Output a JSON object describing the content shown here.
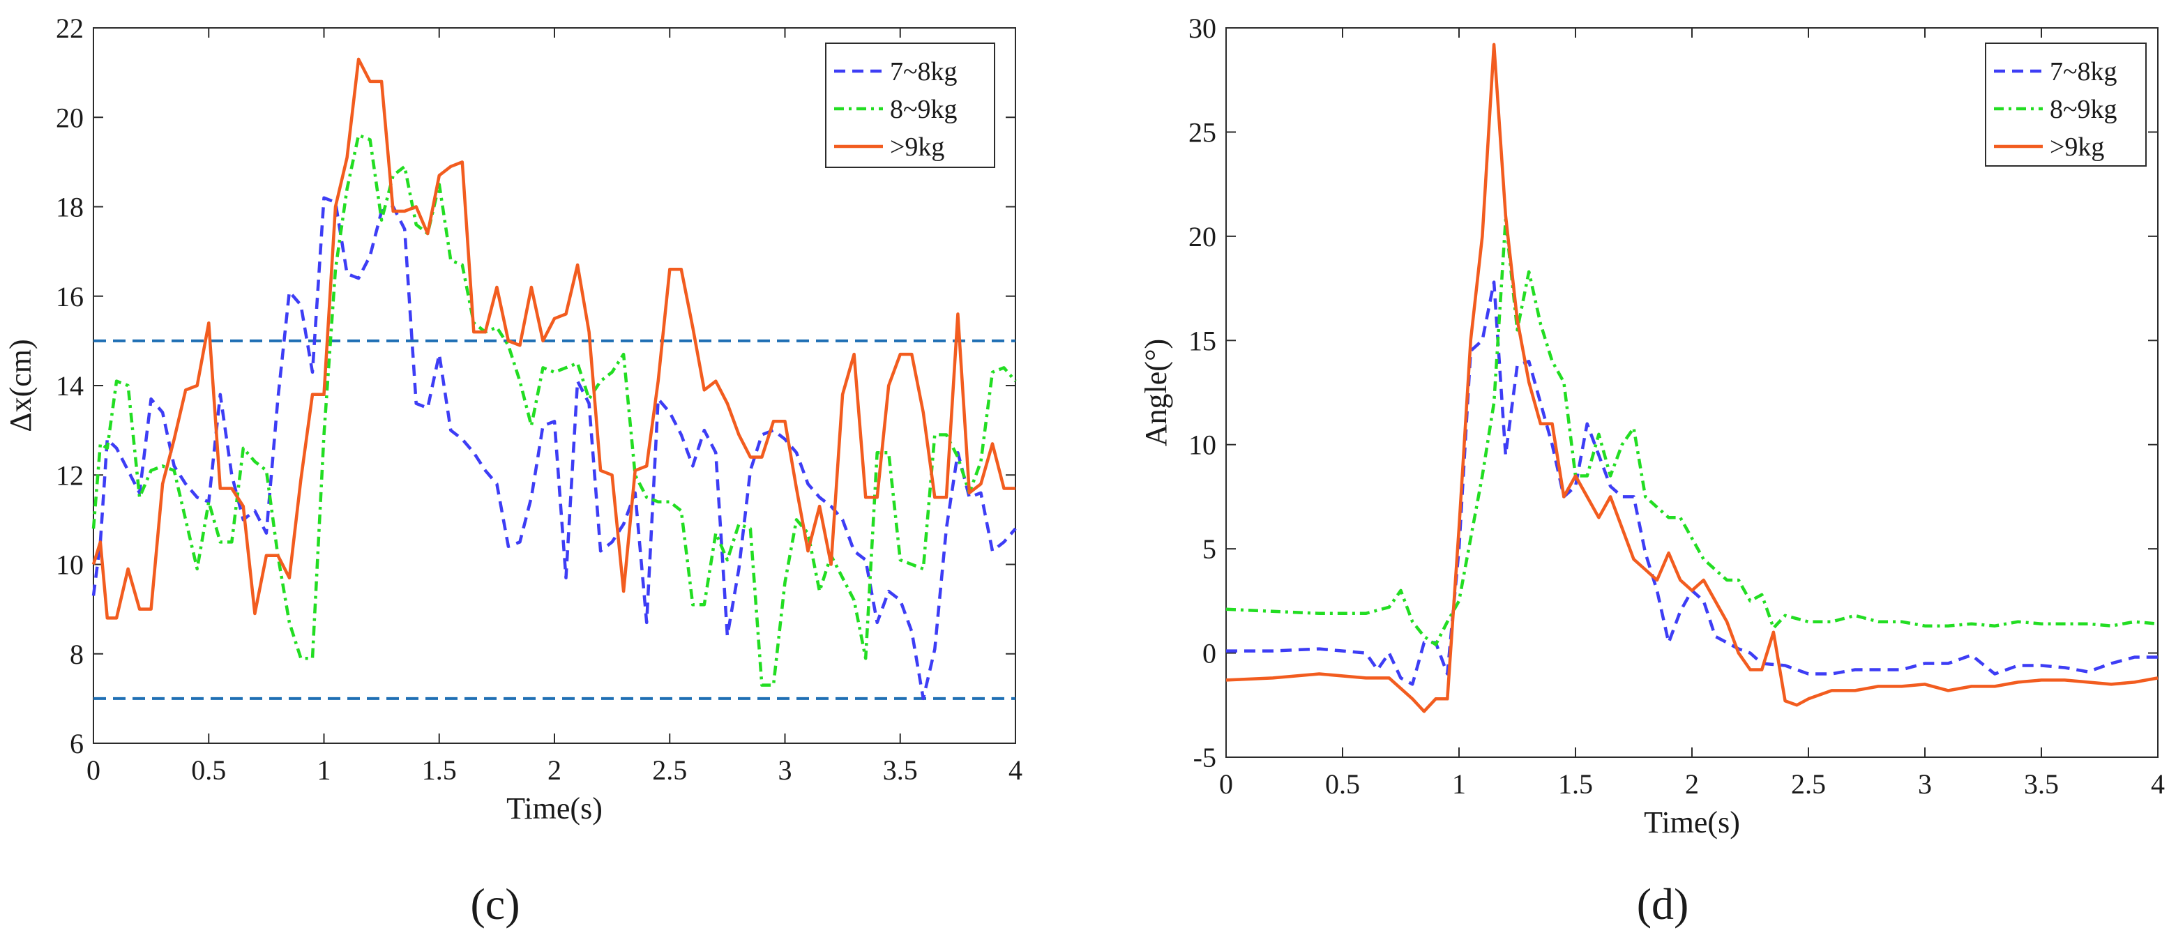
{
  "chart_data": [
    {
      "type": "line",
      "panel_label": "(c)",
      "xlabel": "Time(s)",
      "ylabel": "Δx(cm)",
      "xlim": [
        0,
        4
      ],
      "ylim": [
        6,
        22
      ],
      "xticks": [
        0,
        0.5,
        1,
        1.5,
        2,
        2.5,
        3,
        3.5,
        4
      ],
      "xtick_labels": [
        "0",
        "0.5",
        "1",
        "1.5",
        "2",
        "2.5",
        "3",
        "3.5",
        "4"
      ],
      "yticks": [
        6,
        8,
        10,
        12,
        14,
        16,
        18,
        20,
        22
      ],
      "ytick_labels": [
        "6",
        "8",
        "10",
        "12",
        "14",
        "16",
        "18",
        "20",
        "22"
      ],
      "legend": "top-right",
      "threshold_lines": [
        15,
        7
      ],
      "threshold_color": "#1f6fb4",
      "series": [
        {
          "name": "7~8kg",
          "color": "#3d3df5",
          "dash": "dashed",
          "x": [
            0,
            0.03,
            0.06,
            0.1,
            0.15,
            0.2,
            0.25,
            0.3,
            0.35,
            0.4,
            0.45,
            0.5,
            0.55,
            0.6,
            0.65,
            0.7,
            0.75,
            0.8,
            0.85,
            0.9,
            0.95,
            1,
            1.05,
            1.1,
            1.15,
            1.2,
            1.25,
            1.3,
            1.35,
            1.4,
            1.45,
            1.5,
            1.55,
            1.6,
            1.65,
            1.7,
            1.75,
            1.8,
            1.85,
            1.9,
            1.95,
            2,
            2.05,
            2.1,
            2.15,
            2.2,
            2.25,
            2.3,
            2.35,
            2.4,
            2.45,
            2.5,
            2.55,
            2.6,
            2.65,
            2.7,
            2.75,
            2.8,
            2.85,
            2.9,
            2.95,
            3,
            3.05,
            3.1,
            3.15,
            3.2,
            3.25,
            3.3,
            3.35,
            3.4,
            3.45,
            3.5,
            3.55,
            3.6,
            3.65,
            3.7,
            3.75,
            3.8,
            3.85,
            3.9,
            3.95,
            4
          ],
          "y": [
            9.3,
            10.5,
            12.8,
            12.6,
            12.1,
            11.6,
            13.7,
            13.4,
            12.2,
            11.8,
            11.5,
            11.4,
            13.8,
            12.0,
            11.0,
            11.2,
            10.7,
            13.7,
            16.1,
            15.8,
            14.3,
            18.2,
            18.1,
            16.5,
            16.4,
            16.9,
            17.9,
            18.0,
            17.5,
            13.6,
            13.5,
            14.7,
            13.0,
            12.8,
            12.5,
            12.1,
            11.8,
            10.4,
            10.5,
            11.5,
            13.1,
            13.2,
            9.7,
            14.1,
            13.6,
            10.3,
            10.5,
            10.9,
            11.6,
            8.7,
            13.7,
            13.4,
            12.9,
            12.2,
            13.0,
            12.5,
            8.4,
            9.9,
            12.1,
            12.9,
            13.0,
            12.8,
            12.5,
            11.8,
            11.5,
            11.3,
            11.0,
            10.3,
            10.1,
            8.7,
            9.4,
            9.2,
            8.5,
            7.0,
            8.1,
            10.8,
            12.5,
            11.5,
            11.6,
            10.3,
            10.5,
            10.8
          ]
        },
        {
          "name": "8~9kg",
          "color": "#22dd22",
          "dash": "dashdot",
          "x": [
            0,
            0.03,
            0.06,
            0.1,
            0.15,
            0.2,
            0.25,
            0.3,
            0.35,
            0.4,
            0.45,
            0.5,
            0.55,
            0.6,
            0.65,
            0.7,
            0.75,
            0.8,
            0.85,
            0.9,
            0.95,
            1,
            1.05,
            1.1,
            1.15,
            1.2,
            1.25,
            1.3,
            1.35,
            1.4,
            1.45,
            1.5,
            1.55,
            1.6,
            1.65,
            1.7,
            1.75,
            1.8,
            1.85,
            1.9,
            1.95,
            2,
            2.05,
            2.1,
            2.15,
            2.2,
            2.25,
            2.3,
            2.35,
            2.4,
            2.45,
            2.5,
            2.55,
            2.6,
            2.65,
            2.7,
            2.75,
            2.8,
            2.85,
            2.9,
            2.95,
            3,
            3.05,
            3.1,
            3.15,
            3.2,
            3.25,
            3.3,
            3.35,
            3.4,
            3.45,
            3.5,
            3.55,
            3.6,
            3.65,
            3.7,
            3.75,
            3.8,
            3.85,
            3.9,
            3.95,
            4
          ],
          "y": [
            10.8,
            12.7,
            12.6,
            14.1,
            14.0,
            11.5,
            12.1,
            12.2,
            12.1,
            11.0,
            9.9,
            11.4,
            10.5,
            10.5,
            12.6,
            12.3,
            12.1,
            10.2,
            8.7,
            7.9,
            7.9,
            12.9,
            16.6,
            18.4,
            19.6,
            19.5,
            17.7,
            18.7,
            18.9,
            17.6,
            17.4,
            18.5,
            16.8,
            16.7,
            15.4,
            15.2,
            15.3,
            14.9,
            14.1,
            13.1,
            14.4,
            14.3,
            14.4,
            14.5,
            13.7,
            14.1,
            14.3,
            14.7,
            12.0,
            11.5,
            11.4,
            11.4,
            11.2,
            9.1,
            9.1,
            10.7,
            10.1,
            10.9,
            10.8,
            7.3,
            7.3,
            9.6,
            11.0,
            10.7,
            9.4,
            10.2,
            9.7,
            9.2,
            7.9,
            12.5,
            12.5,
            10.1,
            10.0,
            9.9,
            12.9,
            12.9,
            12.4,
            11.6,
            12.3,
            14.3,
            14.4,
            14.1
          ]
        },
        {
          "name": ">9kg",
          "color": "#f25c1f",
          "dash": "solid",
          "x": [
            0,
            0.03,
            0.06,
            0.1,
            0.15,
            0.2,
            0.25,
            0.3,
            0.35,
            0.4,
            0.45,
            0.5,
            0.55,
            0.6,
            0.65,
            0.7,
            0.75,
            0.8,
            0.85,
            0.9,
            0.95,
            1,
            1.05,
            1.1,
            1.15,
            1.2,
            1.25,
            1.3,
            1.35,
            1.4,
            1.45,
            1.5,
            1.55,
            1.6,
            1.65,
            1.7,
            1.75,
            1.8,
            1.85,
            1.9,
            1.95,
            2,
            2.05,
            2.1,
            2.15,
            2.2,
            2.25,
            2.3,
            2.35,
            2.4,
            2.45,
            2.5,
            2.55,
            2.6,
            2.65,
            2.7,
            2.75,
            2.8,
            2.85,
            2.9,
            2.95,
            3,
            3.05,
            3.1,
            3.15,
            3.2,
            3.25,
            3.3,
            3.35,
            3.4,
            3.45,
            3.5,
            3.55,
            3.6,
            3.65,
            3.7,
            3.75,
            3.8,
            3.85,
            3.9,
            3.95,
            4
          ],
          "y": [
            10.0,
            10.5,
            8.8,
            8.8,
            9.9,
            9.0,
            9.0,
            11.8,
            12.8,
            13.9,
            14.0,
            15.4,
            11.7,
            11.7,
            11.3,
            8.9,
            10.2,
            10.2,
            9.7,
            11.9,
            13.8,
            13.8,
            18.0,
            19.1,
            21.3,
            20.8,
            20.8,
            17.9,
            17.9,
            18.0,
            17.4,
            18.7,
            18.9,
            19.0,
            15.2,
            15.2,
            16.2,
            15.0,
            14.9,
            16.2,
            15.0,
            15.5,
            15.6,
            16.7,
            15.2,
            12.1,
            12.0,
            9.4,
            12.1,
            12.2,
            14.1,
            16.6,
            16.6,
            15.3,
            13.9,
            14.1,
            13.6,
            12.9,
            12.4,
            12.4,
            13.2,
            13.2,
            11.7,
            10.3,
            11.3,
            10.0,
            13.8,
            14.7,
            11.5,
            11.5,
            14.0,
            14.7,
            14.7,
            13.4,
            11.5,
            11.5,
            15.6,
            11.6,
            11.8,
            12.7,
            11.7,
            11.7
          ]
        }
      ]
    },
    {
      "type": "line",
      "panel_label": "(d)",
      "xlabel": "Time(s)",
      "ylabel": "Angle(°)",
      "xlim": [
        0,
        4
      ],
      "ylim": [
        -5,
        30
      ],
      "xticks": [
        0,
        0.5,
        1,
        1.5,
        2,
        2.5,
        3,
        3.5,
        4
      ],
      "xtick_labels": [
        "0",
        "0.5",
        "1",
        "1.5",
        "2",
        "2.5",
        "3",
        "3.5",
        "4"
      ],
      "yticks": [
        -5,
        0,
        5,
        10,
        15,
        20,
        25,
        30
      ],
      "ytick_labels": [
        "-5",
        "0",
        "5",
        "10",
        "15",
        "20",
        "25",
        "30"
      ],
      "legend": "top-right",
      "series": [
        {
          "name": "7~8kg",
          "color": "#3d3df5",
          "dash": "dashed",
          "x": [
            0,
            0.2,
            0.4,
            0.6,
            0.65,
            0.7,
            0.75,
            0.8,
            0.85,
            0.9,
            0.95,
            1.0,
            1.05,
            1.1,
            1.15,
            1.2,
            1.25,
            1.3,
            1.35,
            1.4,
            1.45,
            1.5,
            1.55,
            1.6,
            1.65,
            1.7,
            1.75,
            1.8,
            1.85,
            1.9,
            1.95,
            2.0,
            2.05,
            2.1,
            2.15,
            2.2,
            2.25,
            2.3,
            2.4,
            2.5,
            2.6,
            2.7,
            2.8,
            2.9,
            3.0,
            3.1,
            3.2,
            3.3,
            3.4,
            3.5,
            3.6,
            3.7,
            3.8,
            3.9,
            4.0
          ],
          "y": [
            0.1,
            0.1,
            0.2,
            0.0,
            -0.8,
            0.0,
            -1.2,
            -1.5,
            0.5,
            0.5,
            -1.0,
            5.0,
            14.5,
            15.0,
            17.8,
            9.5,
            13.8,
            14.0,
            12.0,
            10.0,
            7.5,
            8.0,
            11.0,
            9.5,
            8.0,
            7.5,
            7.5,
            4.8,
            3.0,
            0.5,
            2.0,
            3.0,
            2.5,
            0.8,
            0.5,
            0.2,
            0.0,
            -0.5,
            -0.6,
            -1.0,
            -1.0,
            -0.8,
            -0.8,
            -0.8,
            -0.5,
            -0.5,
            -0.1,
            -1.0,
            -0.6,
            -0.6,
            -0.7,
            -0.9,
            -0.5,
            -0.2,
            -0.2
          ]
        },
        {
          "name": "8~9kg",
          "color": "#22dd22",
          "dash": "dashdot",
          "x": [
            0,
            0.2,
            0.4,
            0.6,
            0.7,
            0.75,
            0.8,
            0.85,
            0.9,
            0.95,
            1.0,
            1.05,
            1.1,
            1.15,
            1.2,
            1.25,
            1.3,
            1.35,
            1.4,
            1.45,
            1.5,
            1.55,
            1.6,
            1.65,
            1.7,
            1.75,
            1.8,
            1.85,
            1.9,
            1.95,
            2.0,
            2.05,
            2.1,
            2.15,
            2.2,
            2.25,
            2.3,
            2.35,
            2.4,
            2.5,
            2.6,
            2.7,
            2.8,
            2.9,
            3.0,
            3.1,
            3.2,
            3.3,
            3.4,
            3.5,
            3.6,
            3.7,
            3.8,
            3.9,
            4.0
          ],
          "y": [
            2.1,
            2.0,
            1.9,
            1.9,
            2.2,
            3.0,
            1.5,
            0.8,
            0.4,
            1.5,
            2.5,
            5.5,
            8.5,
            12.0,
            20.8,
            15.5,
            18.3,
            15.8,
            14.0,
            13.0,
            8.5,
            8.5,
            10.5,
            8.5,
            10.0,
            10.8,
            7.5,
            7.0,
            6.5,
            6.5,
            5.5,
            4.5,
            4.0,
            3.5,
            3.5,
            2.5,
            2.8,
            1.2,
            1.8,
            1.5,
            1.5,
            1.8,
            1.5,
            1.5,
            1.3,
            1.3,
            1.4,
            1.3,
            1.5,
            1.4,
            1.4,
            1.4,
            1.3,
            1.5,
            1.4
          ]
        },
        {
          "name": ">9kg",
          "color": "#f25c1f",
          "dash": "solid",
          "x": [
            0,
            0.2,
            0.4,
            0.6,
            0.7,
            0.8,
            0.85,
            0.9,
            0.95,
            1.0,
            1.05,
            1.1,
            1.15,
            1.2,
            1.25,
            1.3,
            1.35,
            1.4,
            1.45,
            1.5,
            1.55,
            1.6,
            1.65,
            1.7,
            1.75,
            1.8,
            1.85,
            1.9,
            1.95,
            2.0,
            2.05,
            2.1,
            2.15,
            2.2,
            2.25,
            2.3,
            2.35,
            2.4,
            2.45,
            2.5,
            2.6,
            2.7,
            2.8,
            2.9,
            3.0,
            3.1,
            3.2,
            3.3,
            3.4,
            3.5,
            3.6,
            3.7,
            3.8,
            3.9,
            4.0
          ],
          "y": [
            -1.3,
            -1.2,
            -1.0,
            -1.2,
            -1.2,
            -2.2,
            -2.8,
            -2.2,
            -2.2,
            6.0,
            15.0,
            20.0,
            29.2,
            21.0,
            16.0,
            13.0,
            11.0,
            11.0,
            7.5,
            8.5,
            7.5,
            6.5,
            7.5,
            6.0,
            4.5,
            4.0,
            3.5,
            4.8,
            3.5,
            3.0,
            3.5,
            2.5,
            1.5,
            0.0,
            -0.8,
            -0.8,
            1.0,
            -2.3,
            -2.5,
            -2.2,
            -1.8,
            -1.8,
            -1.6,
            -1.6,
            -1.5,
            -1.8,
            -1.6,
            -1.6,
            -1.4,
            -1.3,
            -1.3,
            -1.4,
            -1.5,
            -1.4,
            -1.2
          ]
        }
      ]
    }
  ]
}
